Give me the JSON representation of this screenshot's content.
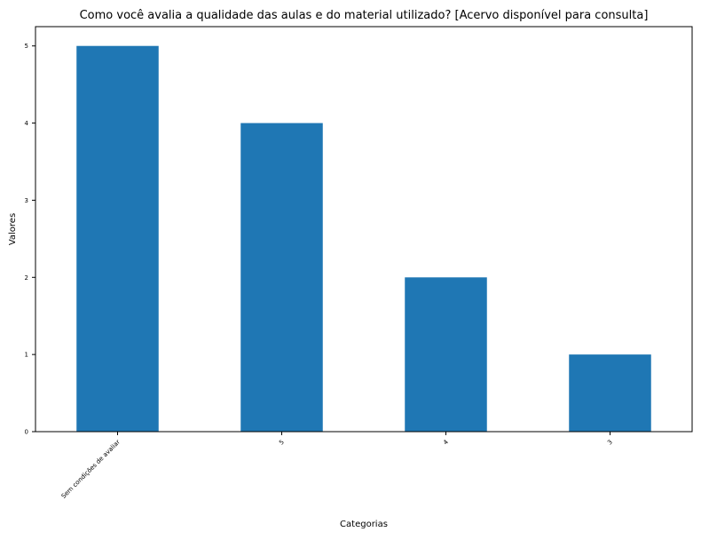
{
  "chart_data": {
    "type": "bar",
    "title": "Como você avalia a qualidade das aulas e do material utilizado? [Acervo disponível para consulta]",
    "xlabel": "Categorias",
    "ylabel": "Valores",
    "categories": [
      "Sem condições de avaliar",
      "5",
      "4",
      "3"
    ],
    "values": [
      5,
      4,
      2,
      1
    ],
    "yticks": [
      0,
      1,
      2,
      3,
      4,
      5
    ],
    "ylim": [
      0,
      5.25
    ],
    "grid": false,
    "legend": "none",
    "bar_color": "#1f77b4"
  }
}
